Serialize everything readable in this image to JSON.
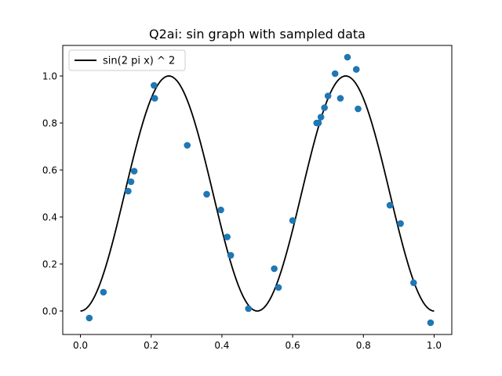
{
  "chart_data": {
    "type": "scatter",
    "title": "Q2ai: sin graph with sampled data",
    "xlabel": "",
    "ylabel": "",
    "xlim": [
      -0.05,
      1.05
    ],
    "ylim": [
      -0.1,
      1.13
    ],
    "x_ticks": [
      0.0,
      0.2,
      0.4,
      0.6,
      0.8,
      1.0
    ],
    "x_tick_labels": [
      "0.0",
      "0.2",
      "0.4",
      "0.6",
      "0.8",
      "1.0"
    ],
    "y_ticks": [
      0.0,
      0.2,
      0.4,
      0.6,
      0.8,
      1.0
    ],
    "y_tick_labels": [
      "0.0",
      "0.2",
      "0.4",
      "0.6",
      "0.8",
      "1.0"
    ],
    "grid": false,
    "legend_position": "top-left",
    "series": [
      {
        "name": "sin(2 pi x) ^ 2",
        "type": "line",
        "color": "#000000",
        "x_range": [
          0.0,
          1.0
        ]
      },
      {
        "type": "scatter",
        "color": "#1f77b4",
        "points": [
          [
            0.025,
            -0.03
          ],
          [
            0.065,
            0.08
          ],
          [
            0.135,
            0.51
          ],
          [
            0.143,
            0.55
          ],
          [
            0.152,
            0.595
          ],
          [
            0.208,
            0.96
          ],
          [
            0.21,
            0.905
          ],
          [
            0.302,
            0.705
          ],
          [
            0.357,
            0.497
          ],
          [
            0.397,
            0.43
          ],
          [
            0.415,
            0.315
          ],
          [
            0.425,
            0.237
          ],
          [
            0.475,
            0.01
          ],
          [
            0.548,
            0.18
          ],
          [
            0.56,
            0.1
          ],
          [
            0.6,
            0.385
          ],
          [
            0.668,
            0.8
          ],
          [
            0.673,
            0.8
          ],
          [
            0.68,
            0.825
          ],
          [
            0.69,
            0.865
          ],
          [
            0.7,
            0.915
          ],
          [
            0.72,
            1.01
          ],
          [
            0.735,
            0.905
          ],
          [
            0.755,
            1.08
          ],
          [
            0.78,
            1.028
          ],
          [
            0.785,
            0.86
          ],
          [
            0.875,
            0.45
          ],
          [
            0.905,
            0.372
          ],
          [
            0.942,
            0.12
          ],
          [
            0.99,
            -0.05
          ]
        ]
      }
    ]
  }
}
